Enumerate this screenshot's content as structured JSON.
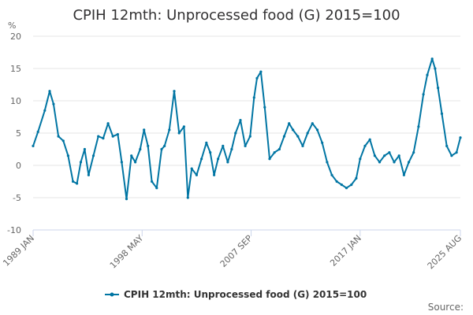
{
  "chart_data": {
    "type": "line",
    "title": "CPIH 12mth: Unprocessed food (G) 2015=100",
    "ylabel": "%",
    "xlabel": "",
    "ylim": [
      -10,
      20
    ],
    "y_ticks": [
      "-10",
      "-5",
      "0",
      "5",
      "10",
      "15",
      "20"
    ],
    "x_tick_labels": [
      "1989 JAN",
      "1998 MAY",
      "2007 SEP",
      "2017 JAN",
      "2025 AUG"
    ],
    "grid": "horizontal",
    "legend_position": "bottom",
    "source_label": "Source:",
    "colors": {
      "series": "#0075a3",
      "grid": "#e6e6e6",
      "axis": "#ccd6eb",
      "text": "#323132"
    },
    "series": [
      {
        "name": "CPIH 12mth: Unprocessed food (G) 2015=100",
        "x": [
          "1989-01",
          "1989-06",
          "1990-01",
          "1990-06",
          "1990-10",
          "1991-03",
          "1991-08",
          "1992-01",
          "1992-06",
          "1992-10",
          "1993-02",
          "1993-06",
          "1993-10",
          "1994-03",
          "1994-08",
          "1995-01",
          "1995-06",
          "1995-11",
          "1996-04",
          "1996-08",
          "1997-01",
          "1997-06",
          "1997-10",
          "1998-03",
          "1998-07",
          "1998-11",
          "1999-03",
          "1999-08",
          "2000-01",
          "2000-04",
          "2000-09",
          "2001-02",
          "2001-07",
          "2001-12",
          "2002-04",
          "2002-08",
          "2003-01",
          "2003-06",
          "2003-11",
          "2004-03",
          "2004-07",
          "2004-11",
          "2005-04",
          "2005-09",
          "2006-01",
          "2006-05",
          "2006-10",
          "2007-03",
          "2007-08",
          "2007-12",
          "2008-03",
          "2008-07",
          "2008-11",
          "2009-04",
          "2009-09",
          "2010-02",
          "2010-07",
          "2010-12",
          "2011-04",
          "2011-09",
          "2012-02",
          "2012-07",
          "2012-12",
          "2013-05",
          "2013-10",
          "2014-03",
          "2014-08",
          "2015-01",
          "2015-06",
          "2015-11",
          "2016-04",
          "2016-09",
          "2017-01",
          "2017-06",
          "2017-11",
          "2018-04",
          "2018-09",
          "2019-02",
          "2019-07",
          "2019-12",
          "2020-05",
          "2020-10",
          "2021-03",
          "2021-08",
          "2022-01",
          "2022-06",
          "2022-10",
          "2023-03",
          "2023-06",
          "2023-09",
          "2024-01",
          "2024-06",
          "2024-11",
          "2025-04",
          "2025-08"
        ],
        "values": [
          3.0,
          5.2,
          8.5,
          11.5,
          9.5,
          4.5,
          3.8,
          1.5,
          -2.5,
          -2.8,
          0.5,
          2.5,
          -1.5,
          1.5,
          4.5,
          4.2,
          6.5,
          4.5,
          4.8,
          0.5,
          -5.2,
          1.5,
          0.5,
          2.5,
          5.5,
          3.0,
          -2.5,
          -3.5,
          2.5,
          3.0,
          5.5,
          11.5,
          5.0,
          6.0,
          -5.0,
          -0.5,
          -1.5,
          1.0,
          3.5,
          2.0,
          -1.5,
          1.0,
          3.0,
          0.5,
          2.5,
          5.0,
          7.0,
          3.0,
          4.5,
          10.5,
          13.5,
          14.5,
          9.0,
          1.0,
          2.0,
          2.5,
          4.5,
          6.5,
          5.5,
          4.5,
          3.0,
          5.0,
          6.5,
          5.5,
          3.5,
          0.5,
          -1.5,
          -2.5,
          -3.0,
          -3.5,
          -3.0,
          -2.0,
          1.0,
          3.0,
          4.0,
          1.5,
          0.5,
          1.5,
          2.0,
          0.5,
          1.5,
          -1.5,
          0.5,
          2.0,
          6.0,
          11.0,
          14.0,
          16.5,
          15.0,
          12.0,
          8.0,
          3.0,
          1.5,
          2.0,
          4.3
        ]
      }
    ]
  }
}
